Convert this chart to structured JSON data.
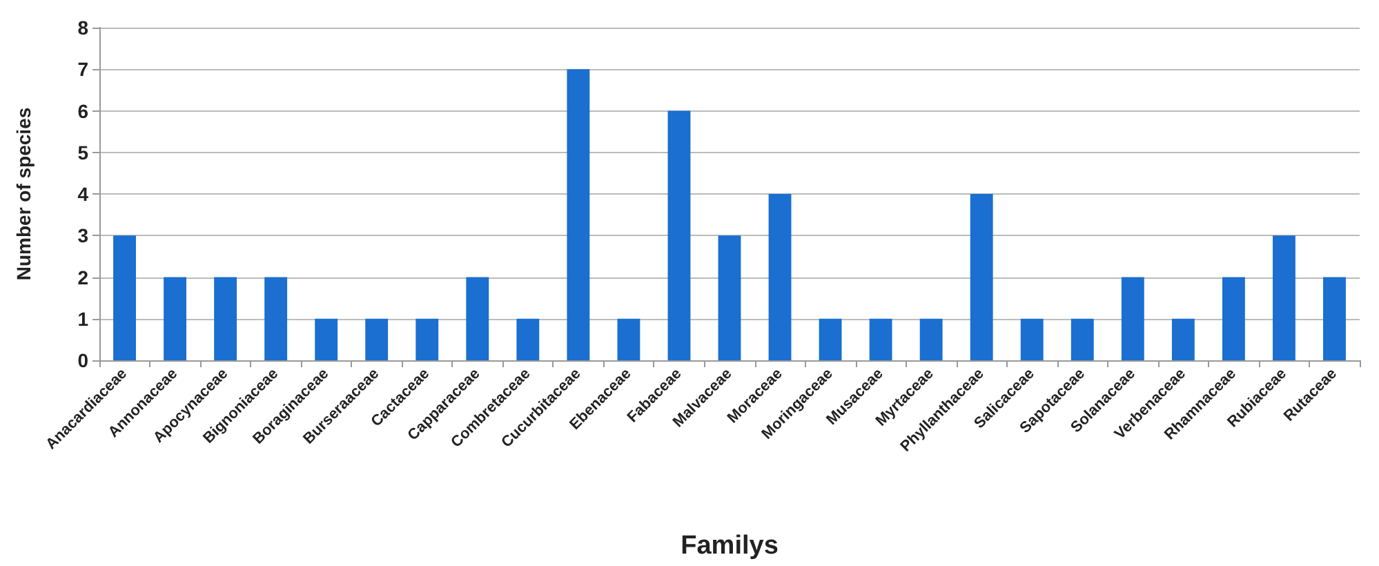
{
  "chart_data": {
    "type": "bar",
    "xlabel": "Familys",
    "ylabel": "Number of species",
    "categories": [
      "Anacardiaceae",
      "Annonaceae",
      "Apocynaceae",
      "Bignoniaceae",
      "Boraginaceae",
      "Burseraaceae",
      "Cactaceae",
      "Capparaceae",
      "Combretaceae",
      "Cucurbitaceae",
      "Ebenaceae",
      "Fabaceae",
      "Malvaceae",
      "Moraceae",
      "Moringaceae",
      "Musaceae",
      "Myrtaceae",
      "Phyllanthaceae",
      "Salicaceae",
      "Sapotaceae",
      "Solanaceae",
      "Verbenaceae",
      "Rhamnaceae",
      "Rubiaceae",
      "Rutaceae"
    ],
    "values": [
      3,
      2,
      2,
      2,
      1,
      1,
      1,
      2,
      1,
      7,
      1,
      6,
      3,
      4,
      1,
      1,
      1,
      4,
      1,
      1,
      2,
      1,
      2,
      3,
      2
    ],
    "color": "#1a6fd0",
    "ylim": [
      0,
      8
    ],
    "yticks": [
      0,
      1,
      2,
      3,
      4,
      5,
      6,
      7,
      8
    ],
    "grid": "y"
  }
}
